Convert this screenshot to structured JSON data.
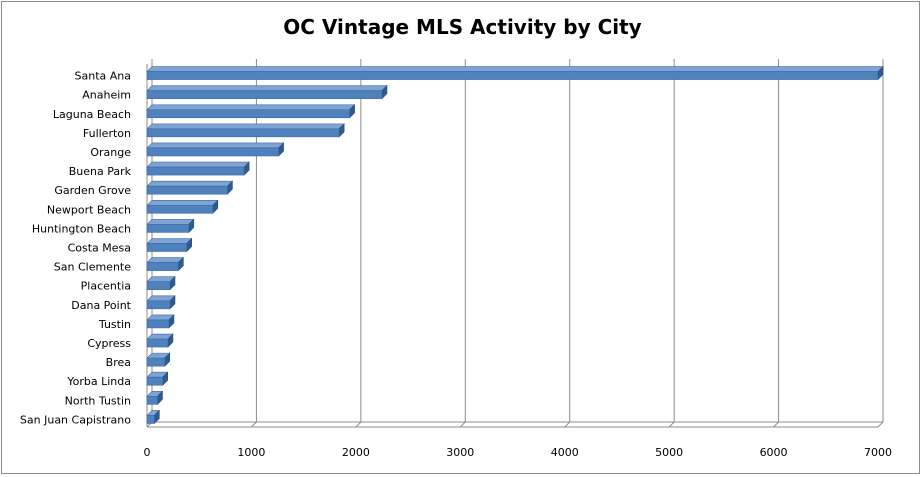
{
  "chart_data": {
    "type": "bar",
    "orientation": "horizontal",
    "title": "OC Vintage MLS Activity by City",
    "xlabel": "",
    "ylabel": "",
    "categories": [
      "Santa Ana",
      "Anaheim",
      "Laguna Beach",
      "Fullerton",
      "Orange",
      "Buena Park",
      "Garden Grove",
      "Newport Beach",
      "Huntington Beach",
      "Costa Mesa",
      "San Clemente",
      "Placentia",
      "Dana Point",
      "Tustin",
      "Cypress",
      "Brea",
      "Yorba Linda",
      "North Tustin",
      "San Juan Capistrano"
    ],
    "values": [
      7000,
      2250,
      1940,
      1840,
      1260,
      930,
      770,
      630,
      400,
      380,
      300,
      220,
      220,
      210,
      200,
      170,
      150,
      100,
      70
    ],
    "xlim": [
      0,
      7000
    ],
    "xticks": [
      "0",
      "1000",
      "2000",
      "3000",
      "4000",
      "5000",
      "6000",
      "7000"
    ],
    "grid": "vertical major gridlines",
    "legend": "none",
    "bar_color": "#4f81bd",
    "bar_style": "3d"
  }
}
